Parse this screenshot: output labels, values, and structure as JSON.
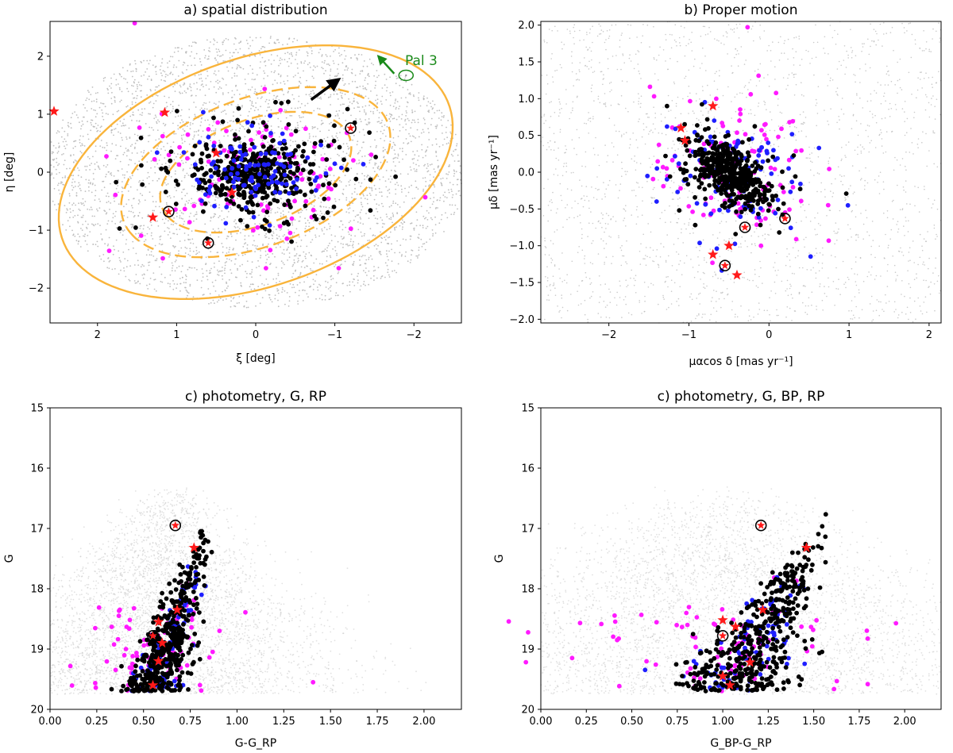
{
  "colors": {
    "background_stars": "#b8b8b8",
    "black_members": "#000000",
    "blue_members": "#1f1fff",
    "magenta_members": "#ff1aff",
    "red_stars": "#ff1a1a",
    "ellipse": "#f9b43b",
    "pal3_label": "#1a8a1a",
    "arrow": "#000000"
  },
  "chart_data": [
    {
      "type": "scatter",
      "title": "a) spatial distribution",
      "xlabel": "ξ [deg]",
      "ylabel": "η [deg]",
      "xlim": [
        2.6,
        -2.6
      ],
      "ylim": [
        -2.6,
        2.6
      ],
      "xticks": [
        "2",
        "1",
        "0",
        "−1",
        "−2"
      ],
      "yticks": [
        "−2",
        "−1",
        "0",
        "1",
        "2"
      ],
      "annotation": "Pal 3",
      "red_stars": [
        [
          2.55,
          1.05
        ],
        [
          1.15,
          1.03
        ],
        [
          1.3,
          -0.78
        ],
        [
          0.5,
          0.33
        ],
        [
          0.3,
          -0.35
        ]
      ],
      "circled_red": [
        [
          1.1,
          -0.68
        ],
        [
          0.6,
          -1.22
        ],
        [
          -1.2,
          0.76
        ]
      ],
      "ellipses": [
        {
          "center": [
            0.0,
            0.0
          ],
          "semi_major": 2.75,
          "semi_minor": 1.85,
          "angle_deg": -35,
          "style": "solid"
        },
        {
          "center": [
            0.0,
            0.0
          ],
          "semi_major": 1.9,
          "semi_minor": 1.2,
          "angle_deg": -35,
          "style": "dashed"
        },
        {
          "center": [
            0.0,
            0.0
          ],
          "semi_major": 1.35,
          "semi_minor": 0.85,
          "angle_deg": -35,
          "style": "dashed"
        }
      ],
      "direction_arrow": {
        "from": [
          -0.7,
          1.25
        ],
        "to": [
          -1.05,
          1.6
        ]
      },
      "pal3_marker": [
        -1.9,
        1.67
      ],
      "pal3_arrow": {
        "from": [
          -1.75,
          1.7
        ],
        "to": [
          -1.55,
          2.0
        ]
      }
    },
    {
      "type": "scatter",
      "title": "b) Proper motion",
      "xlabel": "μαcos δ [mas yr⁻¹]",
      "ylabel": "μδ [mas yr⁻¹]",
      "xlim": [
        -2.85,
        2.15
      ],
      "ylim": [
        -2.05,
        2.05
      ],
      "xticks": [
        "−2",
        "−1",
        "0",
        "1",
        "2"
      ],
      "yticks": [
        "−2.0",
        "−1.5",
        "−1.0",
        "−0.5",
        "0.0",
        "0.5",
        "1.0",
        "1.5",
        "2.0"
      ],
      "red_stars": [
        [
          -1.1,
          0.6
        ],
        [
          -1.05,
          0.43
        ],
        [
          -0.7,
          0.9
        ],
        [
          -0.7,
          -1.12
        ],
        [
          -0.5,
          -1.0
        ],
        [
          -0.4,
          -1.4
        ]
      ],
      "circled_red": [
        [
          -0.3,
          -0.75
        ],
        [
          -0.55,
          -1.27
        ],
        [
          0.2,
          -0.63
        ]
      ]
    },
    {
      "type": "scatter",
      "title": "c) photometry, G, RP",
      "xlabel": "G-G_RP",
      "ylabel": "G",
      "xlim": [
        0.0,
        2.2
      ],
      "ylim": [
        20,
        15
      ],
      "xticks": [
        "0.00",
        "0.25",
        "0.50",
        "0.75",
        "1.00",
        "1.25",
        "1.50",
        "1.75",
        "2.00"
      ],
      "yticks": [
        "15",
        "16",
        "17",
        "18",
        "19",
        "20"
      ],
      "red_stars": [
        [
          0.77,
          17.32
        ],
        [
          0.68,
          18.35
        ],
        [
          0.58,
          18.55
        ],
        [
          0.6,
          18.9
        ],
        [
          0.58,
          19.2
        ],
        [
          0.55,
          19.6
        ]
      ],
      "circled_red": [
        [
          0.67,
          16.95
        ],
        [
          0.55,
          18.78
        ]
      ]
    },
    {
      "type": "scatter",
      "title": "c) photometry, G, BP, RP",
      "xlabel": "G_BP-G_RP",
      "ylabel": "G",
      "xlim": [
        0.0,
        2.2
      ],
      "ylim": [
        20,
        15
      ],
      "xticks": [
        "0.00",
        "0.25",
        "0.50",
        "0.75",
        "1.00",
        "1.25",
        "1.50",
        "1.75",
        "2.00"
      ],
      "yticks": [
        "15",
        "16",
        "17",
        "18",
        "19",
        "20"
      ],
      "red_stars": [
        [
          1.46,
          17.32
        ],
        [
          1.22,
          18.35
        ],
        [
          1.0,
          18.52
        ],
        [
          1.07,
          18.63
        ],
        [
          1.15,
          19.22
        ],
        [
          1.0,
          19.45
        ],
        [
          1.04,
          19.6
        ]
      ],
      "circled_red": [
        [
          1.21,
          16.95
        ],
        [
          1.0,
          18.78
        ]
      ]
    }
  ]
}
